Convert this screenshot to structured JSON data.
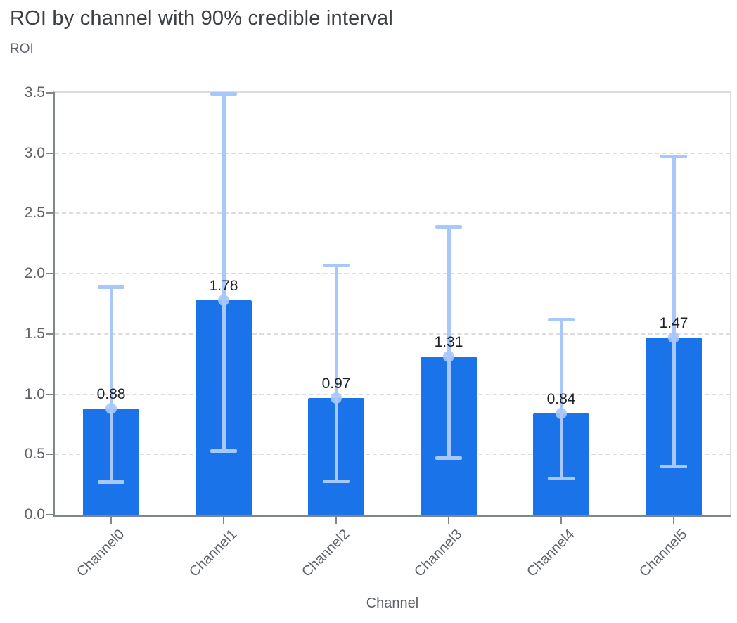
{
  "chart_data": {
    "type": "bar",
    "title": "ROI by channel with 90% credible interval",
    "ylabel": "ROI",
    "xlabel": "Channel",
    "categories": [
      "Channel0",
      "Channel1",
      "Channel2",
      "Channel3",
      "Channel4",
      "Channel5"
    ],
    "series": [
      {
        "name": "ROI",
        "values": [
          0.88,
          1.78,
          0.97,
          1.31,
          0.84,
          1.47
        ]
      }
    ],
    "value_labels": [
      "0.88",
      "1.78",
      "0.97",
      "1.31",
      "0.84",
      "1.47"
    ],
    "error_bars": {
      "label": "90% credible interval",
      "low": [
        0.27,
        0.53,
        0.28,
        0.47,
        0.3,
        0.4
      ],
      "high": [
        1.89,
        3.49,
        2.07,
        2.39,
        1.62,
        2.97
      ]
    },
    "ylim": [
      0,
      3.5
    ],
    "yticks": [
      0.0,
      0.5,
      1.0,
      1.5,
      2.0,
      2.5,
      3.0,
      3.5
    ],
    "ytick_labels": [
      "0.0",
      "0.5",
      "1.0",
      "1.5",
      "2.0",
      "2.5",
      "3.0",
      "3.5"
    ],
    "grid": "horizontal-dashed",
    "legend": "none",
    "colors": {
      "bar": "#1a73e8",
      "interval": "#a8c7fa",
      "title_text": "#3c4043",
      "axis_text": "#5f6368",
      "value_text": "#202124",
      "grid_line": "#dadce0",
      "axis_line": "#80868b"
    }
  }
}
